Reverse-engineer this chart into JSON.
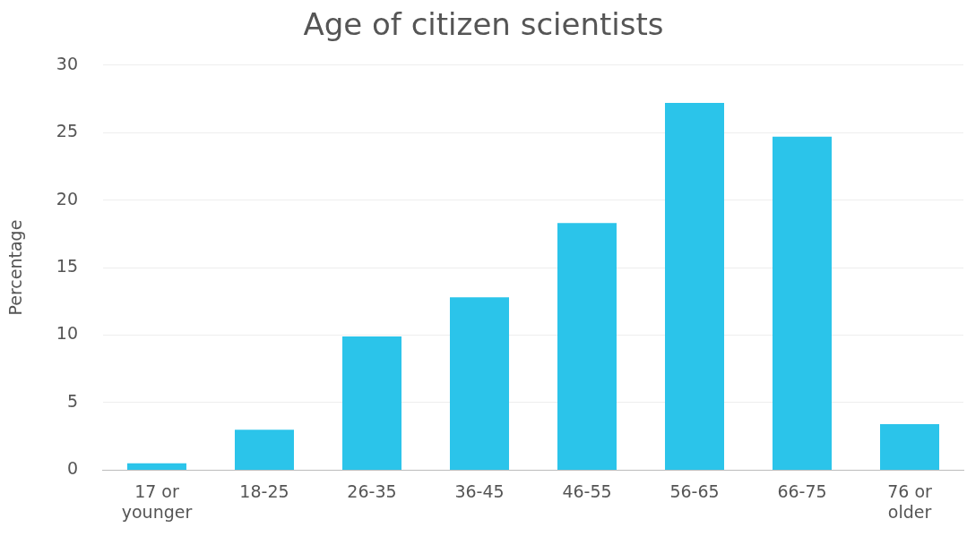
{
  "chart_data": {
    "type": "bar",
    "title": "Age of citizen scientists",
    "ylabel": "Percentage",
    "categories": [
      "17 or younger",
      "18-25",
      "26-35",
      "36-45",
      "46-55",
      "56-65",
      "66-75",
      "76 or older"
    ],
    "values": [
      0.5,
      3.0,
      9.9,
      12.8,
      18.3,
      27.2,
      24.7,
      3.4
    ],
    "color": "#2bc4ea",
    "ylim": [
      0,
      30
    ],
    "yticks": [
      0,
      5,
      10,
      15,
      20,
      25,
      30
    ],
    "grid": "y"
  }
}
